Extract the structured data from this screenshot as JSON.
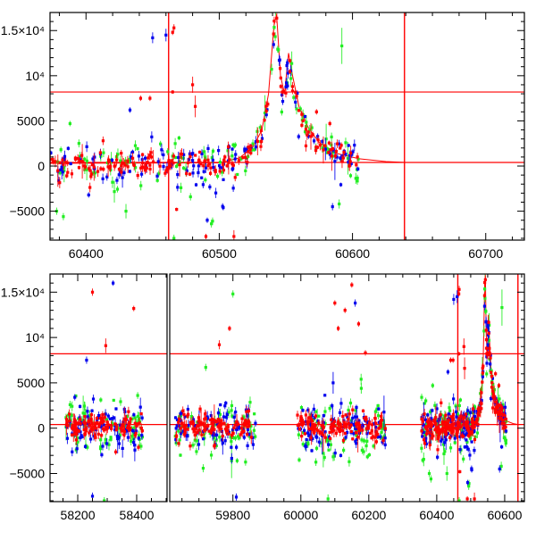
{
  "chart_data": {
    "type": "scatter",
    "title": "",
    "xlabel": "",
    "ylabel": "",
    "grid": false,
    "legend": "none",
    "panels": [
      {
        "name": "top",
        "xlim": [
          60373,
          60729
        ],
        "ylim": [
          -8200,
          17000
        ],
        "xticks": [
          60400,
          60500,
          60600,
          60700
        ],
        "xtick_labels": [
          "60400",
          "60500",
          "60600",
          "60700"
        ],
        "x_minor_step": 20
      },
      {
        "name": "bottom",
        "segments": [
          {
            "xlim": [
              58106,
              58503
            ],
            "xticks": [
              58200,
              58400
            ],
            "xtick_labels": [
              "58200",
              "58400"
            ],
            "x_minor_step": 50
          },
          {
            "xlim": [
              59614,
              60658
            ],
            "xticks": [
              59800,
              60000,
              60200,
              60400,
              60600
            ],
            "xtick_labels": [
              "59800",
              "60000",
              "60200",
              "60400",
              "60600"
            ],
            "x_minor_step": 50
          }
        ],
        "ylim": [
          -8100,
          17000
        ]
      }
    ],
    "yticks": [
      -5000,
      0,
      5000,
      10000,
      15000
    ],
    "ytick_labels": [
      "−5000",
      "0",
      "5000",
      "10⁴",
      "1.5×10⁴"
    ],
    "y_minor_step": 1000,
    "reference_lines": {
      "horizontal": [
        8200,
        400
      ],
      "vertical": [
        60462,
        60639
      ],
      "color": "#ff0000"
    },
    "model_curve": [
      [
        60355,
        300
      ],
      [
        60500,
        350
      ],
      [
        60515,
        900
      ],
      [
        60525,
        2000
      ],
      [
        60532,
        4000
      ],
      [
        60537,
        8000
      ],
      [
        60541,
        15500
      ],
      [
        60543,
        16800
      ],
      [
        60546,
        10000
      ],
      [
        60549,
        8000
      ],
      [
        60552,
        12500
      ],
      [
        60555,
        10000
      ],
      [
        60560,
        6500
      ],
      [
        60567,
        4200
      ],
      [
        60575,
        2600
      ],
      [
        60588,
        1400
      ],
      [
        60605,
        800
      ],
      [
        60625,
        500
      ],
      [
        60640,
        400
      ]
    ],
    "observing_seasons": [
      [
        58160,
        58420
      ],
      [
        59630,
        59870
      ],
      [
        59990,
        60250
      ],
      [
        60355,
        60605
      ]
    ],
    "series": [
      {
        "name": "green",
        "color": "#22ee22",
        "scatter": 1500,
        "neg_skew": 2200,
        "count_per_season": [
          70,
          70,
          80,
          130
        ],
        "outliers": [
          [
            60388,
            4700,
            300
          ],
          [
            60592,
            13300,
            2000
          ],
          [
            60495,
            -6100,
            400
          ],
          [
            60430,
            -5000,
            800
          ],
          [
            60383,
            -5600,
            400
          ],
          [
            60378,
            -5000,
            400
          ],
          [
            60466,
            -8000,
            400
          ],
          [
            58290,
            -8000,
            400
          ],
          [
            59800,
            14800,
            400
          ],
          [
            59720,
            6700,
            400
          ],
          [
            60080,
            -7800,
            500
          ],
          [
            60590,
            -4200,
            500
          ]
        ]
      },
      {
        "name": "blue",
        "color": "#0000ee",
        "scatter": 1200,
        "neg_skew": 1700,
        "count_per_season": [
          80,
          80,
          90,
          150
        ],
        "outliers": [
          [
            60450,
            14200,
            600
          ],
          [
            60433,
            6200,
            300
          ],
          [
            60491,
            -6000,
            300
          ],
          [
            60503,
            -4600,
            300
          ],
          [
            60402,
            -3200,
            300
          ],
          [
            58320,
            16000,
            300
          ],
          [
            58230,
            7500,
            400
          ],
          [
            58250,
            -7500,
            400
          ],
          [
            60095,
            5000,
            1200
          ],
          [
            60160,
            13800,
            400
          ],
          [
            60585,
            -4500,
            400
          ],
          [
            60460,
            14500,
            700
          ],
          [
            59810,
            -7600,
            400
          ]
        ]
      },
      {
        "name": "red",
        "color": "#ff0000",
        "scatter": 650,
        "neg_skew": 900,
        "count_per_season": [
          110,
          110,
          130,
          200
        ],
        "outliers": [
          [
            60466,
            15300,
            400
          ],
          [
            60465,
            14800,
            300
          ],
          [
            60465,
            8200,
            200
          ],
          [
            60480,
            9000,
            900
          ],
          [
            60441,
            7500,
            300
          ],
          [
            60448,
            7500,
            300
          ],
          [
            60482,
            6600,
            1200
          ],
          [
            60511,
            -7800,
            700
          ],
          [
            60490,
            -7800,
            300
          ],
          [
            60468,
            -4800,
            200
          ],
          [
            58250,
            15000,
            400
          ],
          [
            58390,
            13200,
            300
          ],
          [
            58295,
            9100,
            800
          ],
          [
            59790,
            11000,
            300
          ],
          [
            59760,
            9200,
            500
          ],
          [
            60100,
            13800,
            300
          ],
          [
            60130,
            13000,
            300
          ],
          [
            60150,
            15800,
            300
          ],
          [
            60110,
            11000,
            300
          ],
          [
            60170,
            11500,
            300
          ],
          [
            60190,
            8300,
            300
          ],
          [
            60555,
            8800,
            500
          ],
          [
            60573,
            6000,
            300
          ],
          [
            60583,
            4700,
            300
          ]
        ]
      }
    ]
  }
}
